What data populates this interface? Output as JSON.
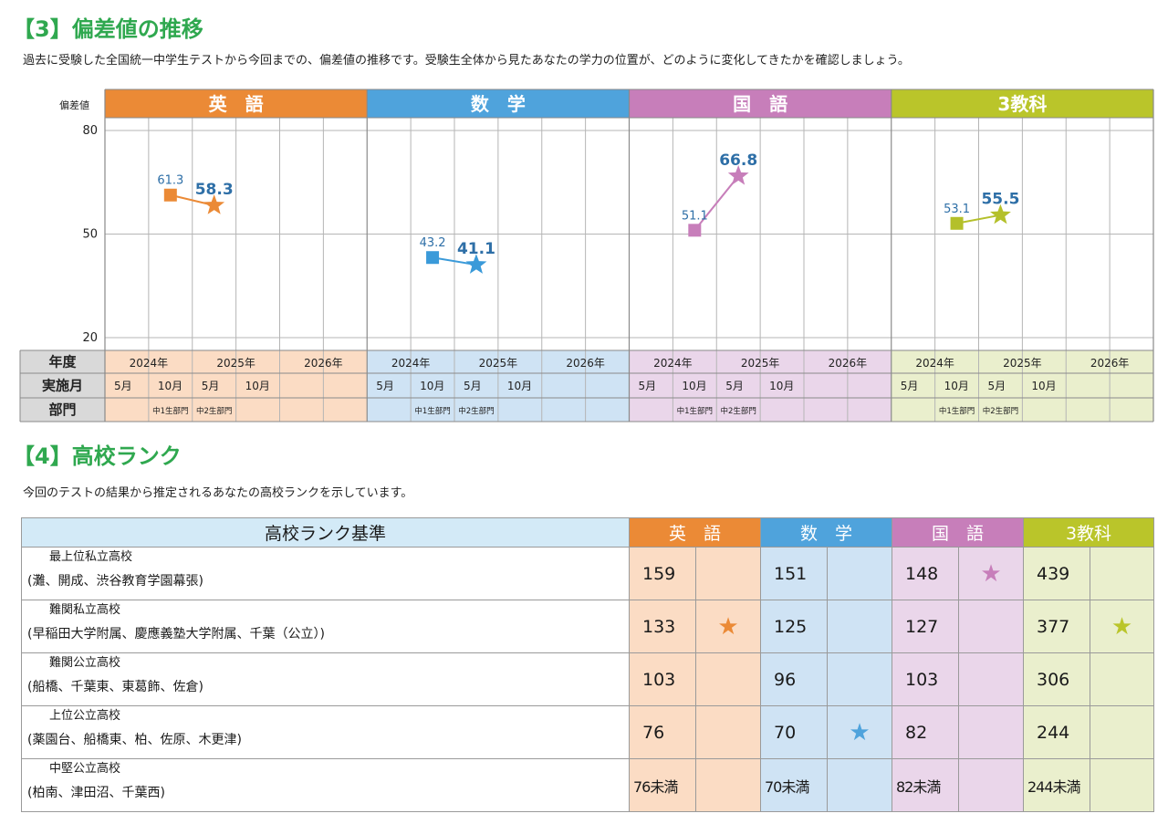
{
  "section3": {
    "title": "【3】偏差値の推移",
    "description": "過去に受験した全国統一中学生テストから今回までの、偏差値の推移です。受験生全体から見たあなたの学力の位置が、どのように変化してきたかを確認しましょう。"
  },
  "chart_data": {
    "type": "line",
    "y_axis_label": "偏差値",
    "ylim": [
      20,
      80
    ],
    "y_ticks": [
      "80",
      "50",
      "20"
    ],
    "row_headers": [
      "年度",
      "実施月",
      "部門"
    ],
    "years": [
      "2024年",
      "2025年",
      "2026年"
    ],
    "months": [
      "5月",
      "10月",
      "5月",
      "10月",
      "",
      ""
    ],
    "divisions": [
      "",
      "中1生部門",
      "中2生部門",
      "",
      "",
      ""
    ],
    "panels": [
      {
        "subject": "英　語",
        "color": "#eb8a36",
        "bg": "#fbdcc4",
        "line_color": "#eb8a36",
        "prev_label": "61.3",
        "curr_label": "58.3",
        "points": [
          {
            "col": 1,
            "value": 61.3
          },
          {
            "col": 2,
            "value": 58.3
          }
        ]
      },
      {
        "subject": "数　学",
        "color": "#4fa3dc",
        "bg": "#cfe3f4",
        "line_color": "#3a9ad9",
        "prev_label": "43.2",
        "curr_label": "41.1",
        "points": [
          {
            "col": 1,
            "value": 43.2
          },
          {
            "col": 2,
            "value": 41.1
          }
        ]
      },
      {
        "subject": "国　語",
        "color": "#c77eba",
        "bg": "#ead6ea",
        "line_color": "#c77eba",
        "prev_label": "51.1",
        "curr_label": "66.8",
        "points": [
          {
            "col": 1,
            "value": 51.1
          },
          {
            "col": 2,
            "value": 66.8
          }
        ]
      },
      {
        "subject": "3教科",
        "color": "#bac52a",
        "bg": "#eaefcd",
        "line_color": "#b4c02a",
        "prev_label": "53.1",
        "curr_label": "55.5",
        "points": [
          {
            "col": 1,
            "value": 53.1
          },
          {
            "col": 2,
            "value": 55.5
          }
        ]
      }
    ]
  },
  "section4": {
    "title": "【4】高校ランク",
    "description": "今回のテストの結果から推定されるあなたの高校ランクを示しています。",
    "header": "高校ランク基準",
    "subjects": [
      {
        "name": "英　語",
        "color": "#eb8a36",
        "bg": "#fbdcc4"
      },
      {
        "name": "数　学",
        "color": "#4fa3dc",
        "bg": "#cfe3f4"
      },
      {
        "name": "国　語",
        "color": "#c77eba",
        "bg": "#ead6ea"
      },
      {
        "name": "3教科",
        "color": "#bac52a",
        "bg": "#eaefcd"
      }
    ],
    "star_glyph": "★",
    "rows": [
      {
        "name": "最上位私立高校",
        "examples": "(灘、開成、渋谷教育学園幕張)",
        "values": [
          "159",
          "151",
          "148",
          "439"
        ],
        "stars": [
          false,
          false,
          true,
          false
        ]
      },
      {
        "name": "難関私立高校",
        "examples": "(早稲田大学附属、慶應義塾大学附属、千葉（公立）)",
        "values": [
          "133",
          "125",
          "127",
          "377"
        ],
        "stars": [
          true,
          false,
          false,
          true
        ]
      },
      {
        "name": "難関公立高校",
        "examples": "(船橋、千葉東、東葛飾、佐倉)",
        "values": [
          "103",
          "96",
          "103",
          "306"
        ],
        "stars": [
          false,
          false,
          false,
          false
        ]
      },
      {
        "name": "上位公立高校",
        "examples": "(薬園台、船橋東、柏、佐原、木更津)",
        "values": [
          "76",
          "70",
          "82",
          "244"
        ],
        "stars": [
          false,
          true,
          false,
          false
        ]
      },
      {
        "name": "中堅公立高校",
        "examples": "(柏南、津田沼、千葉西)",
        "values": [
          "76未満",
          "70未満",
          "82未満",
          "244未満"
        ],
        "stars": [
          false,
          false,
          false,
          false
        ]
      }
    ]
  }
}
